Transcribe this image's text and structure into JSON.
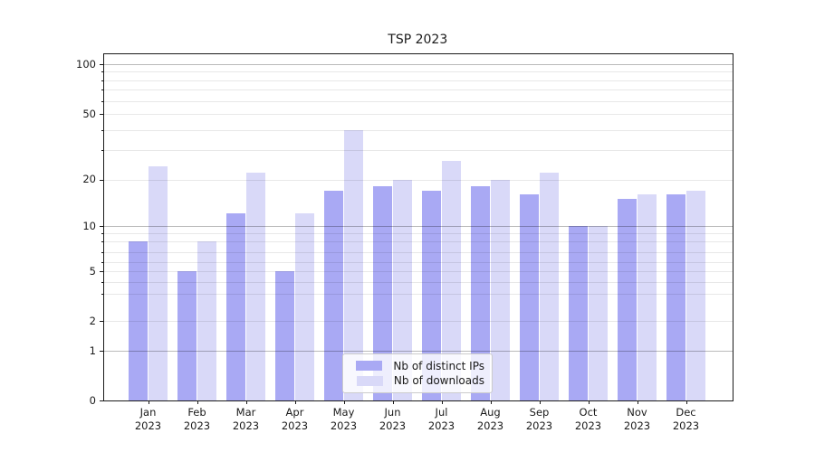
{
  "title": "TSP 2023",
  "chart_data": {
    "type": "bar",
    "title": "TSP 2023",
    "categories": [
      "Jan 2023",
      "Feb 2023",
      "Mar 2023",
      "Apr 2023",
      "May 2023",
      "Jun 2023",
      "Jul 2023",
      "Aug 2023",
      "Sep 2023",
      "Oct 2023",
      "Nov 2023",
      "Dec 2023"
    ],
    "series": [
      {
        "name": "Nb of distinct IPs",
        "color": "#a9a9f4",
        "values": [
          8,
          5,
          12,
          5,
          17,
          18,
          17,
          18,
          16,
          10,
          15,
          16
        ]
      },
      {
        "name": "Nb of downloads",
        "color": "#d9d9f8",
        "values": [
          24,
          8,
          22,
          12,
          40,
          20,
          26,
          20,
          22,
          10,
          16,
          17
        ]
      }
    ],
    "xlabel": "",
    "ylabel": "",
    "yaxis_scale": "symlog-like",
    "ytick_labels": [
      "0",
      "1",
      "2",
      "5",
      "10",
      "20",
      "50",
      "100"
    ],
    "ytick_values": [
      0,
      1,
      2,
      5,
      10,
      20,
      50,
      100
    ],
    "ylim": [
      0,
      110
    ],
    "grid": "horizontal, major (1/10/100) darker + minor lighter, drawn over bars",
    "legend_position": "lower center inside plot",
    "colors": {
      "bar_distinct_ips": "#a9a9f4",
      "bar_downloads": "#d9d9f8",
      "major_gridline": "#b9b9b9",
      "minor_gridline": "#e8e8e8",
      "axis": "#1a1a1a",
      "background": "#ffffff"
    }
  }
}
